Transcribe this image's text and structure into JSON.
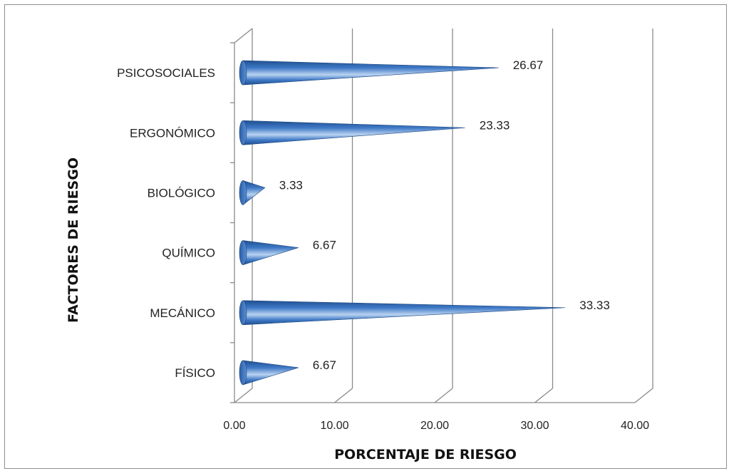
{
  "chart_data": {
    "type": "bar",
    "orientation": "horizontal",
    "shape": "cone-3d",
    "categories": [
      "PSICOSOCIALES",
      "ERGONÓMICO",
      "BIOLÓGICO",
      "QUÍMICO",
      "MECÁNICO",
      "FÍSICO"
    ],
    "values": [
      26.67,
      23.33,
      3.33,
      6.67,
      33.33,
      6.67
    ],
    "data_labels": [
      "26.67",
      "23.33",
      "3.33",
      "6.67",
      "33.33",
      "6.67"
    ],
    "xlabel": "PORCENTAJE DE RIESGO",
    "ylabel": "FACTORES DE RIESGO",
    "xlim": [
      0,
      40
    ],
    "xticks": [
      "0.00",
      "10.00",
      "20.00",
      "30.00",
      "40.00"
    ],
    "grid": true,
    "legend": "none",
    "colors": {
      "bar_dark": "#1f4f8f",
      "bar_mid": "#3f79c6",
      "bar_light": "#b9d2f0",
      "grid": "#8a8a8a"
    }
  }
}
